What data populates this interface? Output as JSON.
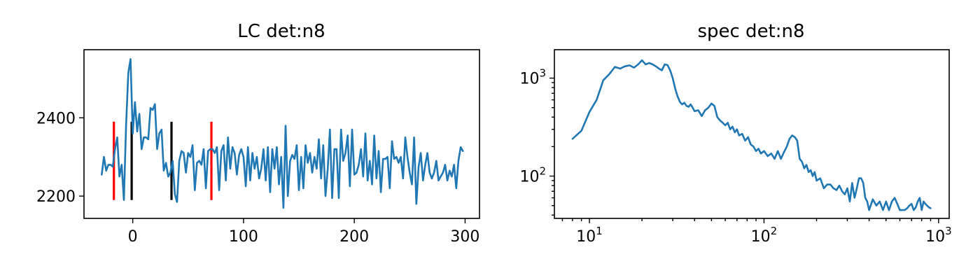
{
  "figure": {
    "line_color": "#1f77b4",
    "marker_colors": {
      "red": "#ff0000",
      "black": "#000000"
    }
  },
  "chart_data": [
    {
      "type": "line",
      "title": "LC det:n8",
      "xlabel": "",
      "ylabel": "",
      "xlim": [
        -44,
        313
      ],
      "ylim": [
        2143,
        2574
      ],
      "xticks": [
        0,
        100,
        200,
        300
      ],
      "xtick_labels": [
        "0",
        "100",
        "200",
        "300"
      ],
      "yticks": [
        2200,
        2400
      ],
      "ytick_labels": [
        "2200",
        "2400"
      ],
      "grid": false,
      "series": [
        {
          "color": "#1f77b4",
          "x": [
            -28,
            -26,
            -24,
            -22,
            -20,
            -18,
            -16,
            -14,
            -12,
            -10,
            -8,
            -6,
            -4,
            -2,
            0,
            2,
            4,
            6,
            8,
            10,
            12,
            14,
            16,
            18,
            20,
            22,
            24,
            26,
            28,
            30,
            32,
            34,
            36,
            38,
            40,
            42,
            44,
            46,
            48,
            50,
            52,
            54,
            56,
            58,
            60,
            62,
            64,
            66,
            68,
            70,
            72,
            74,
            76,
            78,
            80,
            82,
            84,
            86,
            88,
            90,
            92,
            94,
            96,
            98,
            100,
            102,
            104,
            106,
            108,
            110,
            112,
            114,
            116,
            118,
            120,
            122,
            124,
            126,
            128,
            130,
            132,
            134,
            136,
            138,
            140,
            142,
            144,
            146,
            148,
            150,
            152,
            154,
            156,
            158,
            160,
            162,
            164,
            166,
            168,
            170,
            172,
            174,
            176,
            178,
            180,
            182,
            184,
            186,
            188,
            190,
            192,
            194,
            196,
            198,
            200,
            202,
            204,
            206,
            208,
            210,
            212,
            214,
            216,
            218,
            220,
            222,
            224,
            226,
            228,
            230,
            232,
            234,
            236,
            238,
            240,
            242,
            244,
            246,
            248,
            250,
            252,
            254,
            256,
            258,
            260,
            262,
            264,
            266,
            268,
            270,
            272,
            274,
            276,
            278,
            280,
            282,
            284,
            286,
            288,
            290,
            292,
            294,
            296,
            298
          ],
          "y": [
            2255,
            2300,
            2265,
            2280,
            2280,
            2275,
            2320,
            2350,
            2250,
            2280,
            2190,
            2380,
            2515,
            2550,
            2360,
            2440,
            2365,
            2410,
            2320,
            2350,
            2350,
            2345,
            2425,
            2420,
            2435,
            2320,
            2360,
            2370,
            2265,
            2285,
            2250,
            2260,
            2290,
            2205,
            2185,
            2290,
            2315,
            2310,
            2260,
            2310,
            2300,
            2330,
            2215,
            2285,
            2290,
            2280,
            2320,
            2220,
            2315,
            2320,
            2320,
            2310,
            2325,
            2215,
            2315,
            2330,
            2240,
            2350,
            2270,
            2325,
            2310,
            2255,
            2305,
            2320,
            2300,
            2225,
            2325,
            2240,
            2310,
            2270,
            2300,
            2245,
            2270,
            2320,
            2240,
            2325,
            2210,
            2320,
            2270,
            2325,
            2230,
            2300,
            2170,
            2380,
            2200,
            2290,
            2305,
            2295,
            2330,
            2215,
            2300,
            2220,
            2330,
            2285,
            2310,
            2260,
            2300,
            2270,
            2345,
            2245,
            2330,
            2200,
            2270,
            2370,
            2195,
            2320,
            2320,
            2195,
            2370,
            2290,
            2310,
            2355,
            2225,
            2370,
            2255,
            2260,
            2280,
            2320,
            2250,
            2360,
            2240,
            2290,
            2230,
            2355,
            2245,
            2315,
            2210,
            2295,
            2295,
            2300,
            2220,
            2340,
            2295,
            2300,
            2285,
            2300,
            2245,
            2350,
            2300,
            2260,
            2230,
            2350,
            2180,
            2275,
            2310,
            2240,
            2280,
            2310,
            2260,
            2245,
            2260,
            2290,
            2240,
            2250,
            2260,
            2280,
            2240,
            2265,
            2250,
            2280,
            2220,
            2290,
            2325,
            2315
          ]
        }
      ],
      "vlines": [
        {
          "x": -17,
          "ymin": 2190,
          "ymax": 2390,
          "color": "#ff0000"
        },
        {
          "x": -1,
          "ymin": 2190,
          "ymax": 2390,
          "color": "#000000"
        },
        {
          "x": 35,
          "ymin": 2190,
          "ymax": 2390,
          "color": "#000000"
        },
        {
          "x": 71,
          "ymin": 2190,
          "ymax": 2390,
          "color": "#ff0000"
        }
      ]
    },
    {
      "type": "line",
      "title": "spec det:n8",
      "xlabel": "",
      "ylabel": "",
      "xscale": "log",
      "yscale": "log",
      "xlim": [
        6.3,
        1150
      ],
      "ylim": [
        37,
        1950
      ],
      "xticks": [
        10,
        100,
        1000
      ],
      "xtick_labels": [
        {
          "base": "10",
          "exp": "1"
        },
        {
          "base": "10",
          "exp": "2"
        },
        {
          "base": "10",
          "exp": "3"
        }
      ],
      "yticks": [
        100,
        1000
      ],
      "ytick_labels": [
        {
          "base": "10",
          "exp": "2"
        },
        {
          "base": "10",
          "exp": "3"
        }
      ],
      "grid": false,
      "series": [
        {
          "color": "#1f77b4",
          "x": [
            8,
            9,
            10,
            11,
            12,
            13,
            14,
            15,
            16,
            17,
            18,
            19,
            20,
            21,
            22,
            23,
            24,
            25,
            26,
            27,
            28,
            29,
            30,
            31,
            32,
            33,
            34,
            35,
            36,
            37,
            38,
            39,
            40,
            42,
            44,
            46,
            48,
            50,
            52,
            54,
            56,
            58,
            60,
            62,
            64,
            66,
            68,
            70,
            72,
            75,
            78,
            81,
            84,
            87,
            90,
            93,
            96,
            100,
            105,
            110,
            115,
            120,
            125,
            130,
            135,
            140,
            145,
            150,
            155,
            160,
            165,
            170,
            175,
            180,
            185,
            190,
            195,
            200,
            210,
            220,
            230,
            240,
            250,
            260,
            270,
            280,
            290,
            300,
            310,
            320,
            330,
            340,
            350,
            360,
            370,
            380,
            390,
            400,
            420,
            440,
            460,
            480,
            500,
            520,
            540,
            560,
            580,
            600,
            620,
            640,
            660,
            680,
            700,
            720,
            740,
            760,
            780,
            800,
            820,
            840,
            860,
            880,
            900
          ],
          "y": [
            240,
            290,
            450,
            600,
            950,
            1100,
            1300,
            1250,
            1320,
            1350,
            1280,
            1380,
            1520,
            1380,
            1430,
            1380,
            1320,
            1250,
            1200,
            1380,
            1360,
            1200,
            1000,
            780,
            650,
            570,
            540,
            560,
            520,
            510,
            540,
            500,
            460,
            470,
            410,
            470,
            500,
            550,
            520,
            400,
            370,
            350,
            330,
            350,
            300,
            320,
            280,
            300,
            260,
            270,
            230,
            250,
            210,
            200,
            180,
            190,
            170,
            180,
            160,
            170,
            150,
            180,
            150,
            175,
            200,
            240,
            260,
            250,
            230,
            150,
            140,
            120,
            130,
            110,
            115,
            100,
            110,
            90,
            95,
            75,
            82,
            82,
            75,
            72,
            80,
            70,
            65,
            75,
            55,
            85,
            60,
            75,
            95,
            95,
            85,
            60,
            55,
            45,
            58,
            50,
            55,
            45,
            55,
            45,
            55,
            60,
            52,
            45,
            45,
            45,
            47,
            50,
            52,
            45,
            48,
            55,
            60,
            45,
            55,
            52,
            50,
            48,
            47
          ]
        }
      ]
    }
  ]
}
